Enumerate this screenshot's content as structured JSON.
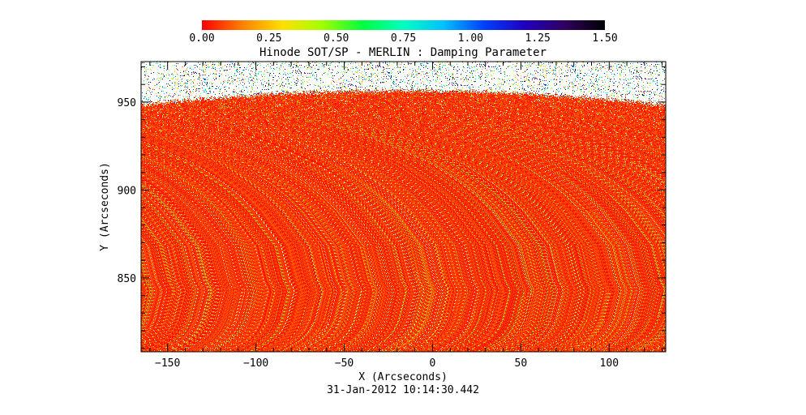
{
  "chart_data": {
    "type": "heatmap",
    "title": "Hinode SOT/SP - MERLIN : Damping Parameter",
    "xlabel": "X (Arcseconds)",
    "ylabel": "Y (Arcseconds)",
    "timestamp": "31-Jan-2012 10:14:30.442",
    "xlim": [
      -165,
      132
    ],
    "ylim": [
      808,
      973
    ],
    "x_ticks": [
      -150,
      -100,
      -50,
      0,
      50,
      100
    ],
    "y_ticks": [
      850,
      900,
      950
    ],
    "x_tick_labels": [
      "−150",
      "−100",
      "−50",
      "0",
      "50",
      "100"
    ],
    "y_tick_labels": [
      "850",
      "900",
      "950"
    ],
    "colorbar": {
      "min": 0.0,
      "max": 1.5,
      "ticks": [
        0.0,
        0.25,
        0.5,
        0.75,
        1.0,
        1.25,
        1.5
      ],
      "tick_labels": [
        "0.00",
        "0.25",
        "0.50",
        "0.75",
        "1.00",
        "1.25",
        "1.50"
      ],
      "colormap": [
        "#ff0000",
        "#ff8000",
        "#ffe000",
        "#a0ff00",
        "#00ff40",
        "#00ffc0",
        "#00c0ff",
        "#0040ff",
        "#2000c0",
        "#300060",
        "#000000"
      ],
      "placement": "top"
    },
    "field": {
      "typical_value": 0.1,
      "yellow_fraction": 0.04,
      "limb_y_center": 958,
      "limb_y_edges": 950,
      "noise_above_limb": true
    }
  }
}
